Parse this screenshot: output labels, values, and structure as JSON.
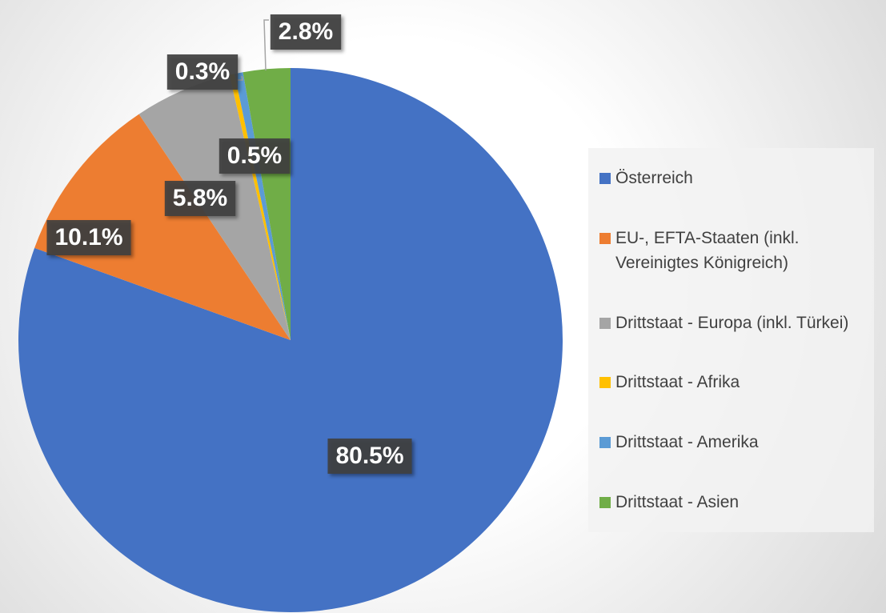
{
  "chart_data": {
    "type": "pie",
    "categories": [
      "Österreich",
      "EU-, EFTA-Staaten (inkl. Vereinigtes Königreich)",
      "Drittstaat - Europa (inkl. Türkei)",
      "Drittstaat - Afrika",
      "Drittstaat - Amerika",
      "Drittstaat - Asien"
    ],
    "values": [
      80.5,
      10.1,
      5.8,
      0.3,
      0.5,
      2.8
    ],
    "value_labels": [
      "80.5%",
      "10.1%",
      "5.8%",
      "0.3%",
      "0.5%",
      "2.8%"
    ],
    "colors": [
      "#4472c4",
      "#ed7d31",
      "#a5a5a5",
      "#ffc000",
      "#5b9bd5",
      "#70ad47"
    ],
    "legend": "right"
  }
}
